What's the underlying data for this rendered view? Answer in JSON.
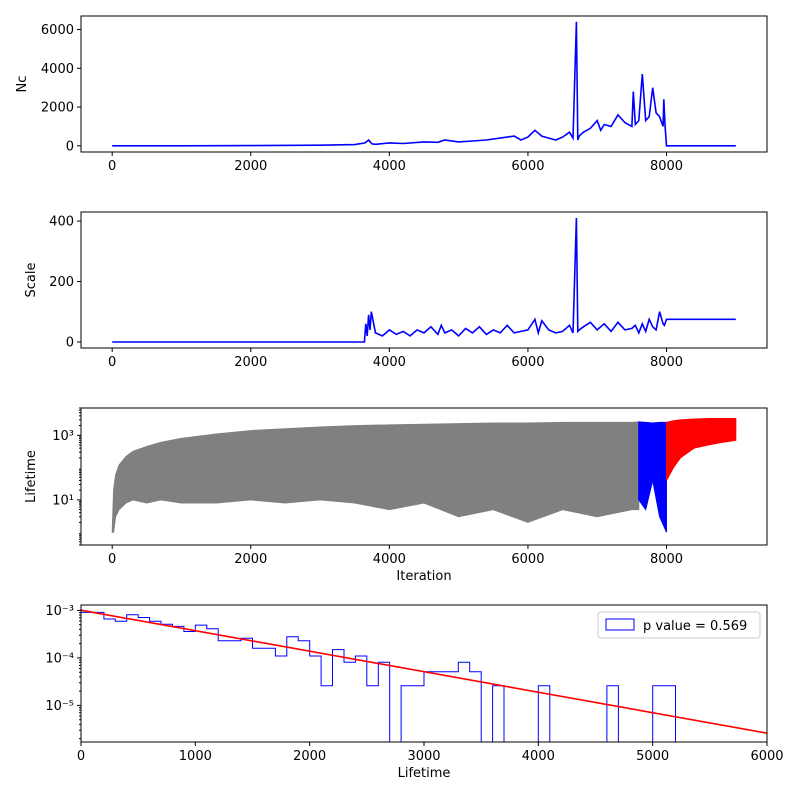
{
  "colors": {
    "blue": "#0000ff",
    "gray": "#808080",
    "red": "#ff0000"
  },
  "chart_data": [
    {
      "type": "line",
      "xlabel": "",
      "ylabel": "Nc",
      "xlim": [
        -450,
        9450
      ],
      "ylim": [
        -320,
        6700
      ],
      "scale": "linear",
      "xticks": [
        0,
        2000,
        4000,
        6000,
        8000
      ],
      "yticks": [
        0,
        2000,
        4000,
        6000
      ],
      "series": [
        {
          "color": "#0000ff",
          "segments": [
            {
              "x": [
                0,
                1000,
                2000,
                3000,
                3500,
                3650,
                3700,
                3750,
                3800,
                4000,
                4200,
                4500,
                4700,
                4800,
                5000,
                5200,
                5400,
                5600,
                5800,
                5900,
                6000,
                6100,
                6200,
                6300,
                6400,
                6500,
                6600,
                6650,
                6700,
                6720,
                6740,
                6800,
                6900,
                7000,
                7050,
                7100,
                7200,
                7300,
                7400,
                7500,
                7520,
                7550,
                7600,
                7650,
                7700,
                7750,
                7800,
                7850,
                7900,
                7950,
                7960,
                7980,
                8000,
                9000
              ],
              "y": [
                0,
                0,
                10,
                30,
                60,
                150,
                300,
                100,
                80,
                150,
                120,
                200,
                180,
                300,
                200,
                250,
                300,
                400,
                500,
                300,
                450,
                800,
                500,
                400,
                300,
                450,
                700,
                400,
                6400,
                300,
                500,
                700,
                900,
                1300,
                800,
                1100,
                1000,
                1600,
                1200,
                1000,
                2800,
                1100,
                1300,
                3700,
                1300,
                1500,
                3000,
                1700,
                1500,
                1000,
                2400,
                1000,
                0,
                0
              ]
            }
          ]
        }
      ]
    },
    {
      "type": "line",
      "xlabel": "",
      "ylabel": "Scale",
      "xlim": [
        -450,
        9450
      ],
      "ylim": [
        -20,
        430
      ],
      "scale": "linear",
      "xticks": [
        0,
        2000,
        4000,
        6000,
        8000
      ],
      "yticks": [
        0,
        200,
        400
      ],
      "series": [
        {
          "color": "#0000ff",
          "segments": [
            {
              "x": [
                0,
                1000,
                2000,
                3000,
                3600,
                3640,
                3660,
                3680,
                3700,
                3720,
                3740,
                3800,
                3900,
                4000,
                4100,
                4200,
                4300,
                4400,
                4500,
                4600,
                4700,
                4750,
                4800,
                4900,
                5000,
                5100,
                5200,
                5300,
                5400,
                5500,
                5600,
                5700,
                5800,
                5900,
                6000,
                6100,
                6150,
                6200,
                6300,
                6400,
                6500,
                6600,
                6650,
                6700,
                6720,
                6740,
                6800,
                6900,
                7000,
                7100,
                7200,
                7300,
                7400,
                7500,
                7550,
                7600,
                7650,
                7700,
                7750,
                7800,
                7850,
                7900,
                7950,
                7970,
                8000,
                9000
              ],
              "y": [
                0,
                0,
                0,
                0,
                0,
                0,
                60,
                20,
                90,
                40,
                100,
                30,
                20,
                40,
                25,
                35,
                20,
                40,
                30,
                50,
                25,
                55,
                30,
                40,
                20,
                45,
                30,
                50,
                25,
                40,
                30,
                55,
                30,
                35,
                40,
                75,
                30,
                70,
                40,
                30,
                35,
                55,
                30,
                410,
                35,
                40,
                50,
                65,
                40,
                60,
                35,
                65,
                40,
                45,
                55,
                30,
                60,
                35,
                75,
                50,
                40,
                100,
                60,
                55,
                75,
                75
              ]
            }
          ]
        }
      ]
    },
    {
      "type": "line",
      "xlabel": "Iteration",
      "ylabel": "Lifetime",
      "xlim": [
        -450,
        9450
      ],
      "ylim": [
        0.4,
        7000
      ],
      "scale": "log",
      "xticks": [
        0,
        2000,
        4000,
        6000,
        8000
      ],
      "yticks": [
        10,
        1000
      ],
      "yticklabels": [
        "10¹",
        "10³"
      ],
      "series": [
        {
          "color": "#808080",
          "segments": [
            {
              "x": [
                0,
                20,
                50,
                100,
                200,
                300,
                500,
                700,
                1000,
                1500,
                2000,
                2500,
                3000,
                3500,
                4000,
                4500,
                5000,
                5500,
                6000,
                6500,
                7000,
                7500,
                7600
              ],
              "y_upper": [
                1,
                20,
                60,
                120,
                220,
                320,
                450,
                600,
                800,
                1100,
                1400,
                1600,
                1800,
                2000,
                2100,
                2200,
                2300,
                2400,
                2400,
                2500,
                2500,
                2500,
                2600
              ],
              "y_lower": [
                1,
                1,
                3,
                5,
                8,
                10,
                8,
                10,
                8,
                8,
                10,
                8,
                10,
                8,
                5,
                8,
                3,
                5,
                2,
                5,
                3,
                5,
                5
              ]
            }
          ]
        },
        {
          "color": "#0000ff",
          "segments": [
            {
              "x": [
                7600,
                7700,
                7800,
                7900,
                8000
              ],
              "y_upper": [
                2600,
                2500,
                2400,
                2500,
                2500
              ],
              "y_lower": [
                10,
                5,
                40,
                3,
                1
              ]
            }
          ]
        },
        {
          "color": "#ff0000",
          "segments": [
            {
              "x": [
                8000,
                8100,
                8200,
                8400,
                8600,
                8800,
                9000
              ],
              "y_upper": [
                2500,
                2800,
                3000,
                3200,
                3300,
                3300,
                3300
              ],
              "y_lower": [
                40,
                100,
                200,
                400,
                500,
                600,
                700
              ]
            }
          ]
        }
      ]
    },
    {
      "type": "histogram",
      "xlabel": "Lifetime",
      "ylabel": "",
      "xlim": [
        0,
        6000
      ],
      "ylim": [
        1.7e-06,
        0.0013
      ],
      "scale": "log",
      "xticks": [
        0,
        1000,
        2000,
        3000,
        4000,
        5000,
        6000
      ],
      "yticks": [
        1e-05,
        0.0001,
        0.001
      ],
      "yticklabels": [
        "10⁻⁵",
        "10⁻⁴",
        "10⁻³"
      ],
      "legend": {
        "label": "p value = 0.569",
        "position": "upper right"
      },
      "bins": [
        0,
        200,
        300,
        400,
        500,
        600,
        700,
        800,
        900,
        1000,
        1100,
        1200,
        1300,
        1400,
        1500,
        1600,
        1700,
        1800,
        1900,
        2000,
        2100,
        2200,
        2300,
        2400,
        2500,
        2600,
        2700,
        2800,
        2900,
        3000,
        3100,
        3200,
        3300,
        3400,
        3500,
        3600,
        3700,
        3800,
        3900,
        4000,
        4100,
        4200,
        4300,
        4400,
        4500,
        4600,
        4700,
        4800,
        4900,
        5000,
        5100,
        5200
      ],
      "counts": [
        0.00091,
        0.00066,
        0.00059,
        0.00081,
        0.00071,
        0.00059,
        0.00051,
        0.00046,
        0.00036,
        0.00049,
        0.00041,
        0.00023,
        0.00023,
        0.00026,
        0.00016,
        0.00016,
        0.00011,
        0.00028,
        0.00023,
        0.00011,
        2.6e-05,
        0.00015,
        8.1e-05,
        0.00011,
        2.6e-05,
        8.1e-05,
        0,
        2.6e-05,
        2.6e-05,
        5.1e-05,
        5.1e-05,
        5.1e-05,
        8.1e-05,
        5.1e-05,
        0,
        2.6e-05,
        0,
        0,
        0,
        2.6e-05,
        0,
        0,
        0,
        0,
        0,
        2.6e-05,
        0,
        0,
        0,
        2.6e-05,
        2.6e-05
      ],
      "fit": {
        "x": [
          0,
          6000
        ],
        "y": [
          0.00101,
          2.6e-06
        ],
        "color": "#ff0000"
      },
      "hist_color": "#0000ff"
    }
  ]
}
